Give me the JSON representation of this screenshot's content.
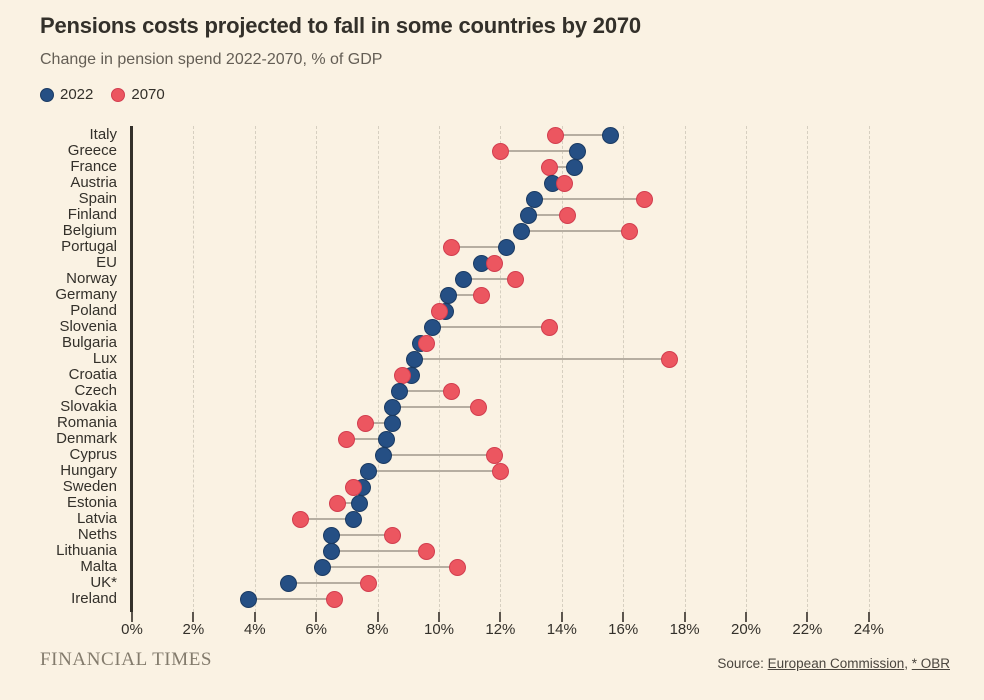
{
  "chart_data": {
    "type": "scatter",
    "chart_kind": "dumbbell-dot-plot",
    "title": "Pensions costs projected to fall in some countries by 2070",
    "subtitle": "Change in pension spend 2022-2070, % of GDP",
    "legend_position": "top-left",
    "xlim": [
      0,
      24
    ],
    "xtick_step": 2,
    "xticks": [
      "0%",
      "2%",
      "4%",
      "6%",
      "8%",
      "10%",
      "12%",
      "14%",
      "16%",
      "18%",
      "20%",
      "22%",
      "24%"
    ],
    "grid": "vertical-dashed",
    "categories": [
      "Italy",
      "Greece",
      "France",
      "Austria",
      "Spain",
      "Finland",
      "Belgium",
      "Portugal",
      "EU",
      "Norway",
      "Germany",
      "Poland",
      "Slovenia",
      "Bulgaria",
      "Lux",
      "Croatia",
      "Czech",
      "Slovakia",
      "Romania",
      "Denmark",
      "Cyprus",
      "Hungary",
      "Sweden",
      "Estonia",
      "Latvia",
      "Neths",
      "Lithuania",
      "Malta",
      "UK*",
      "Ireland"
    ],
    "series": [
      {
        "name": "2022",
        "color": "#254F84",
        "values": [
          15.6,
          14.5,
          14.4,
          13.7,
          13.1,
          12.9,
          12.7,
          12.2,
          11.4,
          10.8,
          10.3,
          10.2,
          9.8,
          9.4,
          9.2,
          9.1,
          8.7,
          8.5,
          8.5,
          8.3,
          8.2,
          7.7,
          7.5,
          7.4,
          7.2,
          6.5,
          6.5,
          6.2,
          5.1,
          3.8
        ]
      },
      {
        "name": "2070",
        "color": "#EC5660",
        "values": [
          13.8,
          12.0,
          13.6,
          14.1,
          16.7,
          14.2,
          16.2,
          10.4,
          11.8,
          12.5,
          11.4,
          10.0,
          13.6,
          9.6,
          17.5,
          8.8,
          10.4,
          11.3,
          7.6,
          7.0,
          11.8,
          12.0,
          7.2,
          6.7,
          5.5,
          8.5,
          9.6,
          10.6,
          7.7,
          6.6
        ]
      }
    ],
    "colors": {
      "background": "#FAF2E3",
      "text": "#33302A",
      "subtitle_text": "#645E55",
      "gridline": "#D6CFC0",
      "axis": "#33302A",
      "connector": "#B6AEA1",
      "blue_2022": "#254F84",
      "red_2070": "#EC5660"
    }
  },
  "footer": {
    "logo": "FINANCIAL TIMES",
    "source_prefix": "Source: ",
    "source_link1": "European Commission",
    "source_sep": ", ",
    "source_link2": "* OBR"
  }
}
